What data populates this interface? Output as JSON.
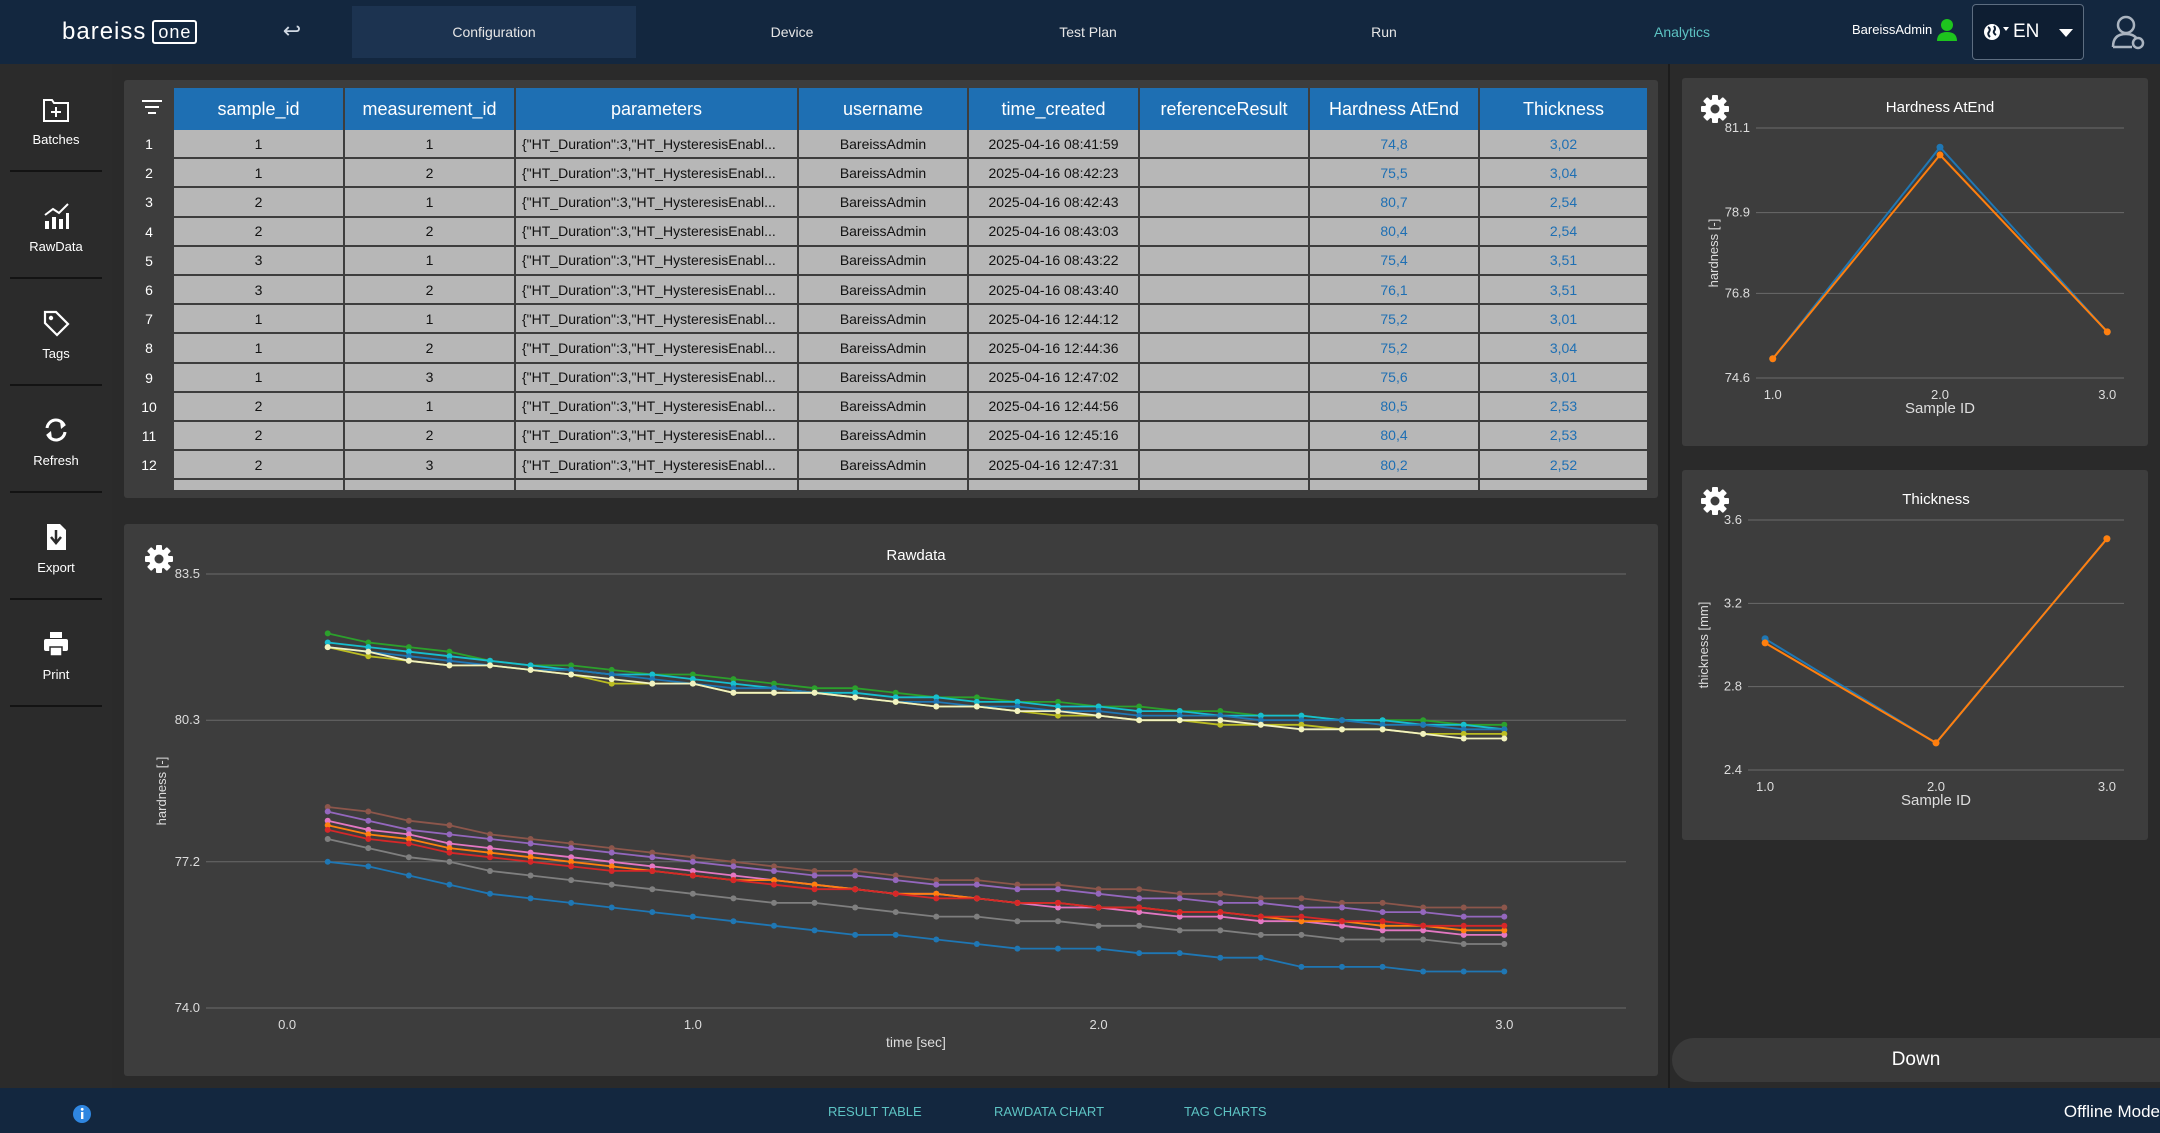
{
  "header": {
    "logo_text": "bareiss",
    "logo_badge": "one",
    "back_icon": "undo-arrow-icon",
    "tabs": [
      {
        "label": "Configuration",
        "selected": true,
        "active": false
      },
      {
        "label": "Device",
        "selected": false,
        "active": false
      },
      {
        "label": "Test Plan",
        "selected": false,
        "active": false
      },
      {
        "label": "Run",
        "selected": false,
        "active": false
      },
      {
        "label": "Analytics",
        "selected": false,
        "active": true
      }
    ],
    "user": "BareissAdmin",
    "language": "EN"
  },
  "sidebar": {
    "items": [
      {
        "label": "Batches",
        "icon": "batches-icon"
      },
      {
        "label": "RawData",
        "icon": "chart-icon"
      },
      {
        "label": "Tags",
        "icon": "tag-icon"
      },
      {
        "label": "Refresh",
        "icon": "refresh-icon"
      },
      {
        "label": "Export",
        "icon": "export-icon"
      },
      {
        "label": "Print",
        "icon": "print-icon"
      }
    ]
  },
  "table": {
    "columns": [
      "sample_id",
      "measurement_id",
      "parameters",
      "username",
      "time_created",
      "referenceResult",
      "Hardness AtEnd",
      "Thickness"
    ],
    "rows": [
      {
        "n": "1",
        "sample_id": "1",
        "measurement_id": "1",
        "parameters": "{\"HT_Duration\":3,\"HT_HysteresisEnabl...",
        "username": "BareissAdmin",
        "time_created": "2025-04-16 08:41:59",
        "referenceResult": "",
        "hardness": "74,8",
        "thickness": "3,02"
      },
      {
        "n": "2",
        "sample_id": "1",
        "measurement_id": "2",
        "parameters": "{\"HT_Duration\":3,\"HT_HysteresisEnabl...",
        "username": "BareissAdmin",
        "time_created": "2025-04-16 08:42:23",
        "referenceResult": "",
        "hardness": "75,5",
        "thickness": "3,04"
      },
      {
        "n": "3",
        "sample_id": "2",
        "measurement_id": "1",
        "parameters": "{\"HT_Duration\":3,\"HT_HysteresisEnabl...",
        "username": "BareissAdmin",
        "time_created": "2025-04-16 08:42:43",
        "referenceResult": "",
        "hardness": "80,7",
        "thickness": "2,54"
      },
      {
        "n": "4",
        "sample_id": "2",
        "measurement_id": "2",
        "parameters": "{\"HT_Duration\":3,\"HT_HysteresisEnabl...",
        "username": "BareissAdmin",
        "time_created": "2025-04-16 08:43:03",
        "referenceResult": "",
        "hardness": "80,4",
        "thickness": "2,54"
      },
      {
        "n": "5",
        "sample_id": "3",
        "measurement_id": "1",
        "parameters": "{\"HT_Duration\":3,\"HT_HysteresisEnabl...",
        "username": "BareissAdmin",
        "time_created": "2025-04-16 08:43:22",
        "referenceResult": "",
        "hardness": "75,4",
        "thickness": "3,51"
      },
      {
        "n": "6",
        "sample_id": "3",
        "measurement_id": "2",
        "parameters": "{\"HT_Duration\":3,\"HT_HysteresisEnabl...",
        "username": "BareissAdmin",
        "time_created": "2025-04-16 08:43:40",
        "referenceResult": "",
        "hardness": "76,1",
        "thickness": "3,51"
      },
      {
        "n": "7",
        "sample_id": "1",
        "measurement_id": "1",
        "parameters": "{\"HT_Duration\":3,\"HT_HysteresisEnabl...",
        "username": "BareissAdmin",
        "time_created": "2025-04-16 12:44:12",
        "referenceResult": "",
        "hardness": "75,2",
        "thickness": "3,01"
      },
      {
        "n": "8",
        "sample_id": "1",
        "measurement_id": "2",
        "parameters": "{\"HT_Duration\":3,\"HT_HysteresisEnabl...",
        "username": "BareissAdmin",
        "time_created": "2025-04-16 12:44:36",
        "referenceResult": "",
        "hardness": "75,2",
        "thickness": "3,04"
      },
      {
        "n": "9",
        "sample_id": "1",
        "measurement_id": "3",
        "parameters": "{\"HT_Duration\":3,\"HT_HysteresisEnabl...",
        "username": "BareissAdmin",
        "time_created": "2025-04-16 12:47:02",
        "referenceResult": "",
        "hardness": "75,6",
        "thickness": "3,01"
      },
      {
        "n": "10",
        "sample_id": "2",
        "measurement_id": "1",
        "parameters": "{\"HT_Duration\":3,\"HT_HysteresisEnabl...",
        "username": "BareissAdmin",
        "time_created": "2025-04-16 12:44:56",
        "referenceResult": "",
        "hardness": "80,5",
        "thickness": "2,53"
      },
      {
        "n": "11",
        "sample_id": "2",
        "measurement_id": "2",
        "parameters": "{\"HT_Duration\":3,\"HT_HysteresisEnabl...",
        "username": "BareissAdmin",
        "time_created": "2025-04-16 12:45:16",
        "referenceResult": "",
        "hardness": "80,4",
        "thickness": "2,53"
      },
      {
        "n": "12",
        "sample_id": "2",
        "measurement_id": "3",
        "parameters": "{\"HT_Duration\":3,\"HT_HysteresisEnabl...",
        "username": "BareissAdmin",
        "time_created": "2025-04-16 12:47:31",
        "referenceResult": "",
        "hardness": "80,2",
        "thickness": "2,52"
      }
    ]
  },
  "chart_data": [
    {
      "id": "rawdata",
      "type": "line",
      "title": "Rawdata",
      "xlabel": "time [sec]",
      "ylabel": "hardness [-]",
      "xlim": [
        -0.2,
        3.3
      ],
      "ylim": [
        74.0,
        83.5
      ],
      "xticks": [
        "0.0",
        "1.0",
        "2.0",
        "3.0"
      ],
      "yticks": [
        "74.0",
        "77.2",
        "80.3",
        "83.5"
      ],
      "grid": "horizontal",
      "x": [
        0.1,
        0.2,
        0.3,
        0.4,
        0.5,
        0.6,
        0.7,
        0.8,
        0.9,
        1.0,
        1.1,
        1.2,
        1.3,
        1.4,
        1.5,
        1.6,
        1.7,
        1.8,
        1.9,
        2.0,
        2.1,
        2.2,
        2.3,
        2.4,
        2.5,
        2.6,
        2.7,
        2.8,
        2.9,
        3.0
      ],
      "series": [
        {
          "color": "#2ca02c",
          "values": [
            82.2,
            82.0,
            81.9,
            81.8,
            81.6,
            81.5,
            81.5,
            81.4,
            81.3,
            81.3,
            81.2,
            81.1,
            81.0,
            81.0,
            80.9,
            80.8,
            80.8,
            80.7,
            80.7,
            80.6,
            80.6,
            80.5,
            80.5,
            80.4,
            80.4,
            80.3,
            80.3,
            80.3,
            80.2,
            80.2
          ]
        },
        {
          "color": "#17becf",
          "values": [
            82.0,
            81.9,
            81.8,
            81.7,
            81.6,
            81.5,
            81.4,
            81.3,
            81.3,
            81.2,
            81.1,
            81.0,
            80.9,
            80.9,
            80.8,
            80.8,
            80.7,
            80.7,
            80.6,
            80.6,
            80.5,
            80.5,
            80.4,
            80.4,
            80.4,
            80.3,
            80.3,
            80.2,
            80.2,
            80.1
          ]
        },
        {
          "color": "#1f77b4",
          "values": [
            81.9,
            81.8,
            81.7,
            81.6,
            81.5,
            81.4,
            81.4,
            81.3,
            81.2,
            81.1,
            81.0,
            81.0,
            80.9,
            80.8,
            80.7,
            80.7,
            80.6,
            80.6,
            80.5,
            80.5,
            80.4,
            80.4,
            80.4,
            80.3,
            80.3,
            80.3,
            80.2,
            80.2,
            80.1,
            80.1
          ]
        },
        {
          "color": "#bcbd22",
          "values": [
            81.9,
            81.7,
            81.6,
            81.5,
            81.5,
            81.4,
            81.3,
            81.1,
            81.1,
            81.1,
            80.9,
            80.9,
            80.9,
            80.8,
            80.7,
            80.6,
            80.6,
            80.5,
            80.4,
            80.4,
            80.3,
            80.3,
            80.2,
            80.2,
            80.2,
            80.1,
            80.1,
            80.0,
            80.0,
            80.0
          ]
        },
        {
          "color": "#f2f2c0",
          "values": [
            81.9,
            81.8,
            81.6,
            81.5,
            81.5,
            81.4,
            81.3,
            81.2,
            81.1,
            81.1,
            80.9,
            80.9,
            80.9,
            80.8,
            80.7,
            80.6,
            80.6,
            80.5,
            80.5,
            80.4,
            80.3,
            80.3,
            80.3,
            80.2,
            80.1,
            80.1,
            80.1,
            80.0,
            79.9,
            79.9
          ]
        },
        {
          "color": "#8c564b",
          "values": [
            78.4,
            78.3,
            78.1,
            78.0,
            77.8,
            77.7,
            77.6,
            77.5,
            77.4,
            77.3,
            77.2,
            77.1,
            77.0,
            77.0,
            76.9,
            76.8,
            76.8,
            76.7,
            76.7,
            76.6,
            76.6,
            76.5,
            76.5,
            76.4,
            76.4,
            76.3,
            76.3,
            76.2,
            76.2,
            76.2
          ]
        },
        {
          "color": "#9467bd",
          "values": [
            78.3,
            78.1,
            77.9,
            77.8,
            77.7,
            77.6,
            77.5,
            77.4,
            77.3,
            77.2,
            77.1,
            77.0,
            76.9,
            76.9,
            76.8,
            76.7,
            76.7,
            76.6,
            76.6,
            76.5,
            76.4,
            76.4,
            76.3,
            76.3,
            76.2,
            76.2,
            76.1,
            76.1,
            76.0,
            76.0
          ]
        },
        {
          "color": "#e377c2",
          "values": [
            78.1,
            77.9,
            77.8,
            77.6,
            77.5,
            77.4,
            77.3,
            77.2,
            77.1,
            77.0,
            76.9,
            76.8,
            76.7,
            76.6,
            76.5,
            76.5,
            76.4,
            76.3,
            76.2,
            76.2,
            76.1,
            76.0,
            76.0,
            75.9,
            75.9,
            75.8,
            75.7,
            75.7,
            75.6,
            75.6
          ]
        },
        {
          "color": "#ff7f0e",
          "values": [
            78.0,
            77.8,
            77.7,
            77.5,
            77.4,
            77.3,
            77.2,
            77.1,
            77.0,
            76.9,
            76.8,
            76.8,
            76.7,
            76.6,
            76.5,
            76.5,
            76.4,
            76.3,
            76.3,
            76.2,
            76.2,
            76.1,
            76.1,
            76.0,
            75.9,
            75.9,
            75.8,
            75.8,
            75.7,
            75.7
          ]
        },
        {
          "color": "#d62728",
          "values": [
            77.9,
            77.7,
            77.6,
            77.4,
            77.3,
            77.2,
            77.1,
            77.0,
            77.0,
            76.9,
            76.8,
            76.7,
            76.6,
            76.6,
            76.5,
            76.4,
            76.4,
            76.3,
            76.3,
            76.2,
            76.2,
            76.1,
            76.1,
            76.0,
            76.0,
            75.9,
            75.9,
            75.8,
            75.8,
            75.8
          ]
        },
        {
          "color": "#7f7f7f",
          "values": [
            77.7,
            77.5,
            77.3,
            77.2,
            77.0,
            76.9,
            76.8,
            76.7,
            76.6,
            76.5,
            76.4,
            76.3,
            76.3,
            76.2,
            76.1,
            76.0,
            76.0,
            75.9,
            75.9,
            75.8,
            75.8,
            75.7,
            75.7,
            75.6,
            75.6,
            75.5,
            75.5,
            75.5,
            75.4,
            75.4
          ]
        },
        {
          "color": "#1f77b4",
          "values": [
            77.2,
            77.1,
            76.9,
            76.7,
            76.5,
            76.4,
            76.3,
            76.2,
            76.1,
            76.0,
            75.9,
            75.8,
            75.7,
            75.6,
            75.6,
            75.5,
            75.4,
            75.3,
            75.3,
            75.3,
            75.2,
            75.2,
            75.1,
            75.1,
            74.9,
            74.9,
            74.9,
            74.8,
            74.8,
            74.8
          ]
        }
      ]
    },
    {
      "id": "hardness",
      "type": "line",
      "title": "Hardness AtEnd",
      "xlabel": "Sample ID",
      "ylabel": "hardness [-]",
      "xlim": [
        0.9,
        3.1
      ],
      "ylim": [
        74.6,
        81.1
      ],
      "xticks": [
        "1.0",
        "2.0",
        "3.0"
      ],
      "yticks": [
        "74.6",
        "76.8",
        "78.9",
        "81.1"
      ],
      "x": [
        1.0,
        2.0,
        3.0
      ],
      "series": [
        {
          "color": "#1f77b4",
          "values": [
            75.1,
            80.6,
            75.8
          ]
        },
        {
          "color": "#ff7f0e",
          "values": [
            75.1,
            80.4,
            75.8
          ]
        }
      ]
    },
    {
      "id": "thickness",
      "type": "line",
      "title": "Thickness",
      "xlabel": "Sample ID",
      "ylabel": "thickness [mm]",
      "xlim": [
        0.9,
        3.1
      ],
      "ylim": [
        2.4,
        3.6
      ],
      "xticks": [
        "1.0",
        "2.0",
        "3.0"
      ],
      "yticks": [
        "2.4",
        "2.8",
        "3.2",
        "3.6"
      ],
      "x": [
        1.0,
        2.0,
        3.0
      ],
      "series": [
        {
          "color": "#1f77b4",
          "values": [
            3.03,
            2.53,
            3.51
          ]
        },
        {
          "color": "#ff7f0e",
          "values": [
            3.01,
            2.53,
            3.51
          ]
        }
      ]
    }
  ],
  "down_button": "Down",
  "footer": {
    "info_icon": "info-icon",
    "tabs": [
      "RESULT TABLE",
      "RAWDATA CHART",
      "TAG CHARTS"
    ],
    "status": "Offline Mode"
  }
}
